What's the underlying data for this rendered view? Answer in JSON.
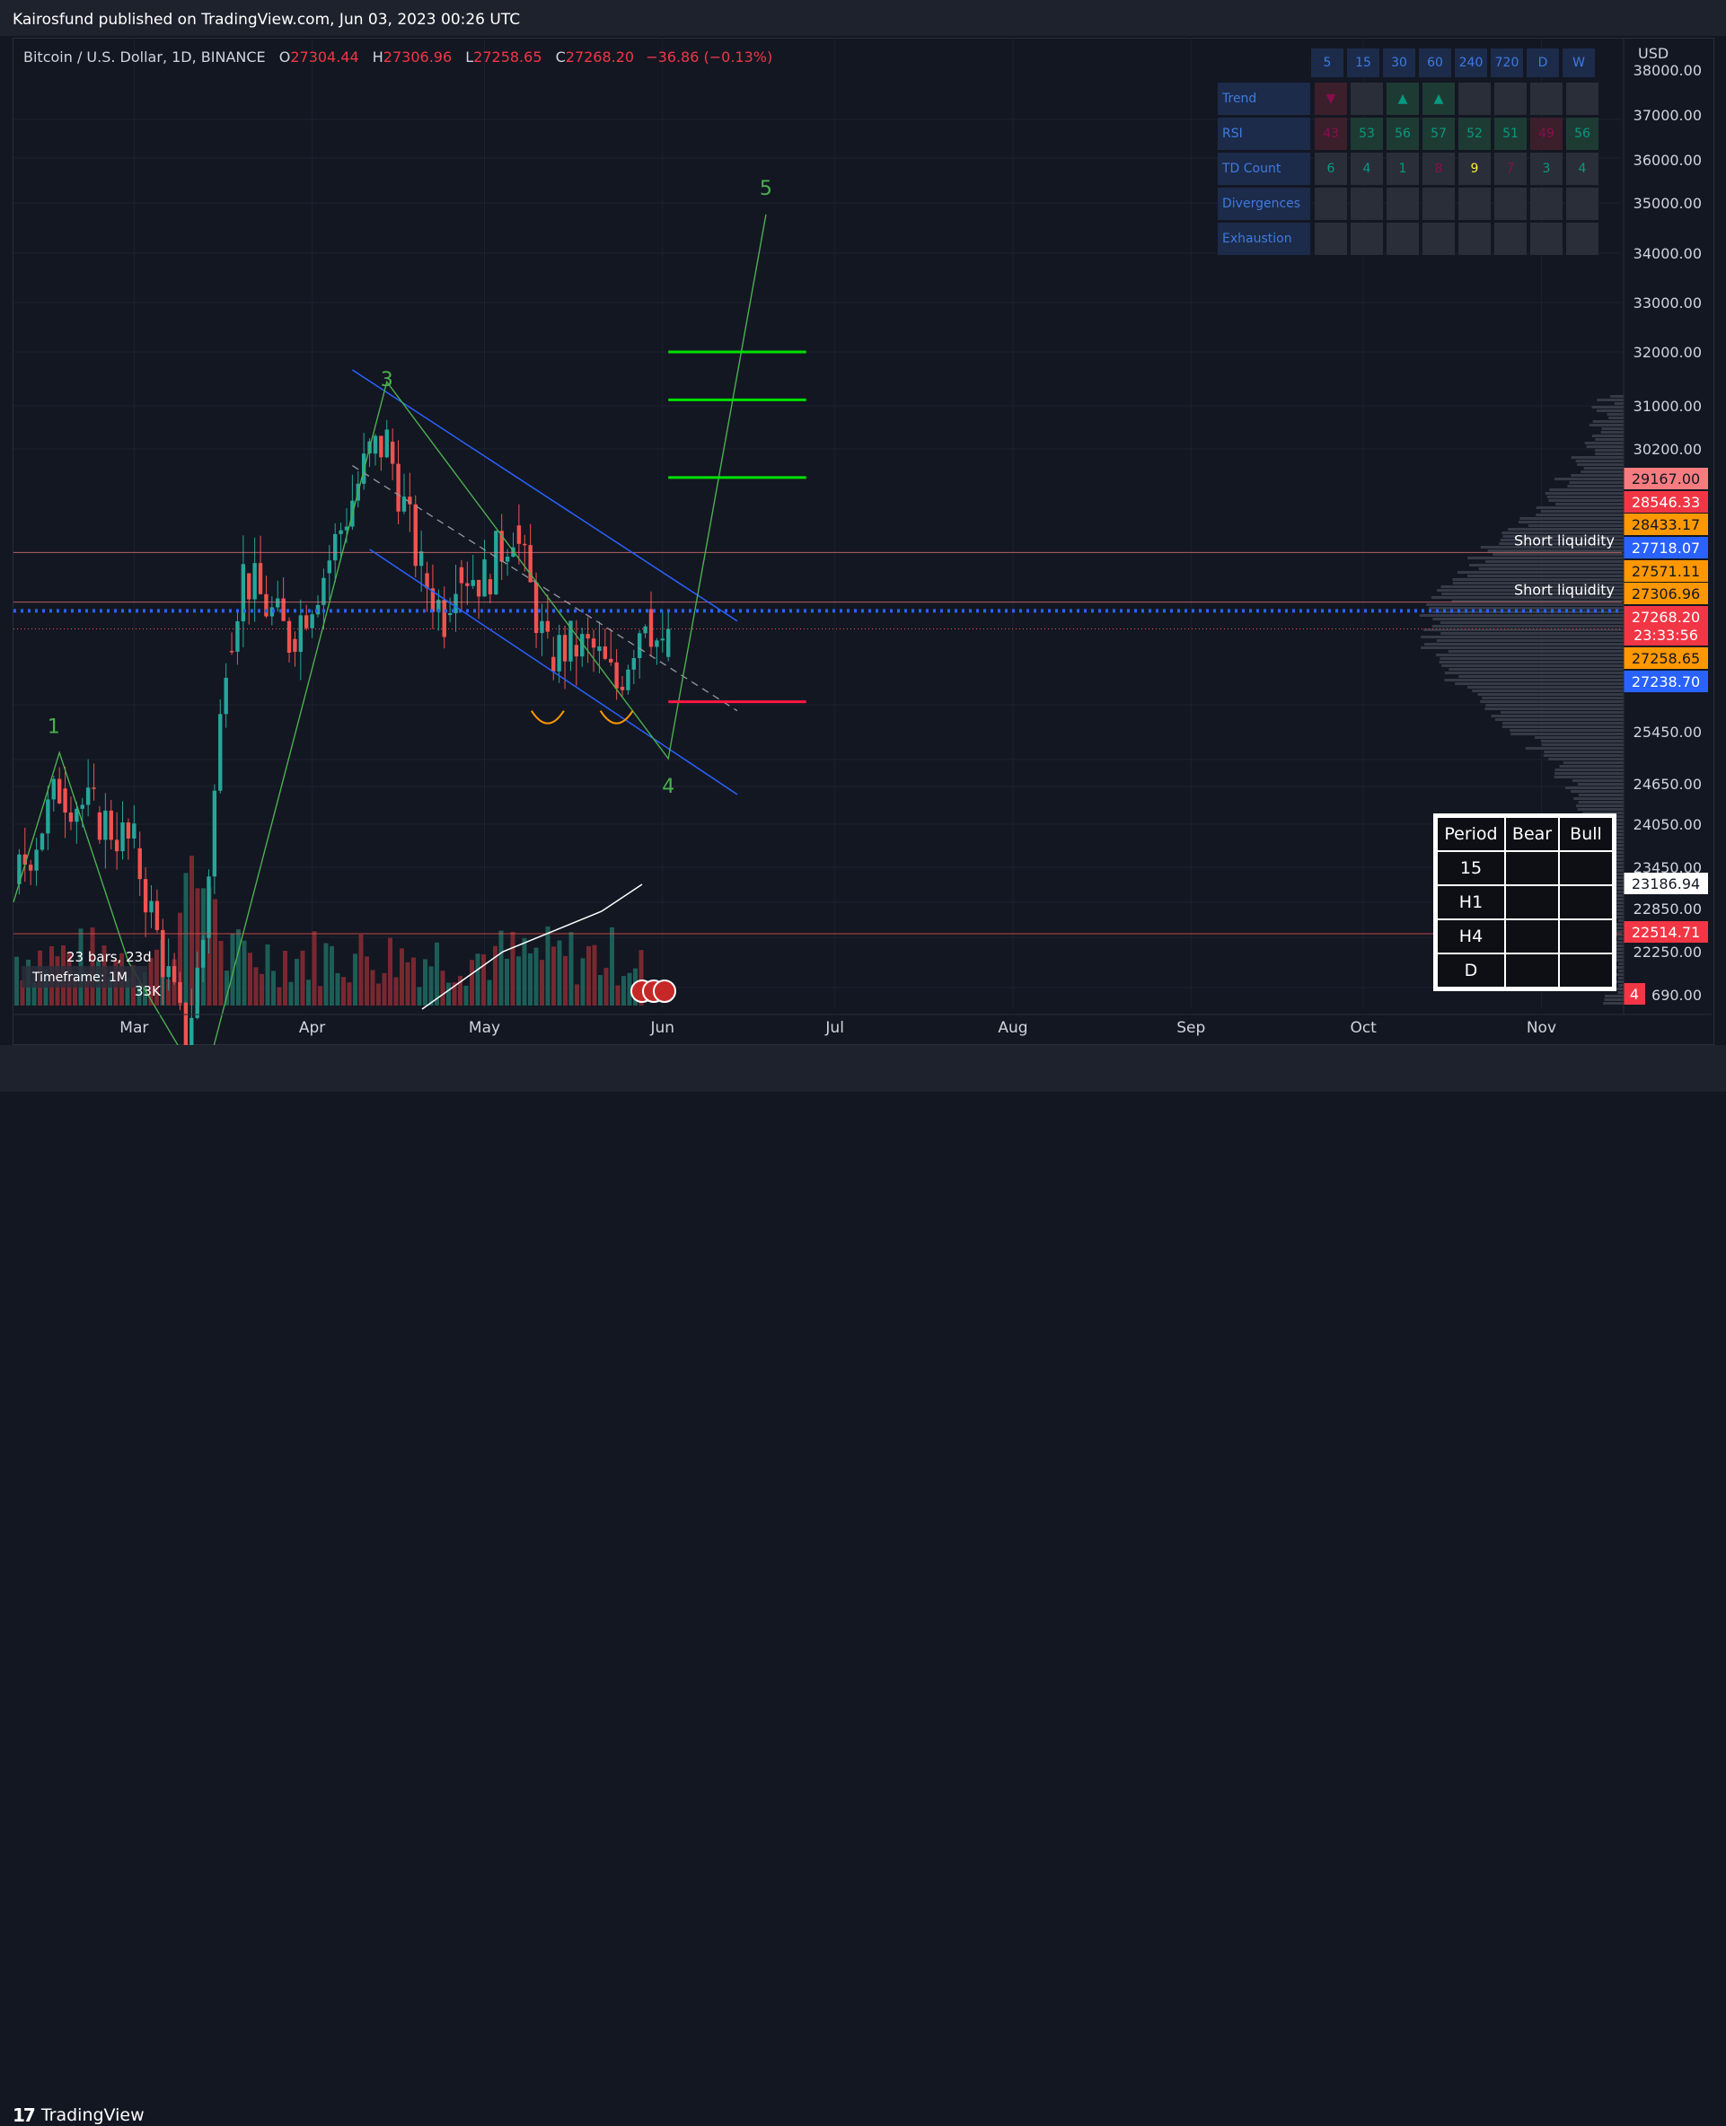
{
  "header": {
    "published_line": "Kairosfund published on TradingView.com, Jun 03, 2023 00:26 UTC"
  },
  "legend": {
    "symbol": "Bitcoin / U.S. Dollar, 1D, BINANCE",
    "open_label": "O",
    "open": "27304.44",
    "high_label": "H",
    "high": "27306.96",
    "low_label": "L",
    "low": "27258.65",
    "close_label": "C",
    "close": "27268.20",
    "change": "−36.86 (−0.13%)"
  },
  "price_axis": {
    "currency": "USD",
    "ticks": [
      "37000.00",
      "36000.00",
      "35000.00",
      "34000.00",
      "33000.00",
      "32000.00",
      "31000.00",
      "30200.00",
      "25450.00",
      "24650.00",
      "24050.00",
      "23450.00",
      "22850.00",
      "22250.00",
      "690.00"
    ],
    "top_cut_tick": "38000.00"
  },
  "price_badges": [
    {
      "text": "29167.00",
      "bg": "#f77c80",
      "fg": "#131722"
    },
    {
      "text": "28546.33",
      "bg": "#f23645",
      "fg": "#ffffff"
    },
    {
      "text": "28433.17",
      "bg": "#ff9800",
      "fg": "#131722"
    },
    {
      "text": "27718.07",
      "bg": "#2962ff",
      "fg": "#ffffff"
    },
    {
      "text": "27571.11",
      "bg": "#ff9800",
      "fg": "#131722"
    },
    {
      "text": "27306.96",
      "bg": "#ff9800",
      "fg": "#131722"
    },
    {
      "text": "27268.20",
      "bg": "#f23645",
      "fg": "#ffffff"
    },
    {
      "text": "23:33:56",
      "bg": "#f23645",
      "fg": "#ffffff"
    },
    {
      "text": "27258.65",
      "bg": "#ff9800",
      "fg": "#131722"
    },
    {
      "text": "27238.70",
      "bg": "#2962ff",
      "fg": "#ffffff"
    },
    {
      "text": "23186.94",
      "bg": "#ffffff",
      "fg": "#131722"
    },
    {
      "text": "22514.71",
      "bg": "#f23645",
      "fg": "#ffffff"
    },
    {
      "text": "4",
      "bg": "#f23645",
      "fg": "#ffffff"
    }
  ],
  "annotations": {
    "short_liquidity_1": "Short liquidity",
    "short_liquidity_2": "Short liquidity",
    "wave_1": "1",
    "wave_3": "3",
    "wave_4": "4",
    "wave_5": "5",
    "bars_info": "23 bars, 23d",
    "timeframe_info": "Timeframe: 1M",
    "volume_info": "33K"
  },
  "time_axis": {
    "labels": [
      "Mar",
      "Apr",
      "May",
      "Jun",
      "Jul",
      "Aug",
      "Sep",
      "Oct",
      "Nov"
    ]
  },
  "mtf_table": {
    "timeframes": [
      "5",
      "15",
      "30",
      "60",
      "240",
      "720",
      "D",
      "W"
    ],
    "rows": [
      {
        "label": "Trend",
        "cells": [
          "▼",
          "",
          "▲",
          "▲",
          "",
          "",
          "",
          ""
        ],
        "colors": [
          "#880e4f",
          "",
          "#089981",
          "#089981",
          "",
          "",
          "",
          ""
        ],
        "bgs": [
          "#3b1f2b",
          "#2a2e39",
          "#1e3b33",
          "#1e3b33",
          "#2a2e39",
          "#2a2e39",
          "#2a2e39",
          "#2a2e39"
        ]
      },
      {
        "label": "RSI",
        "cells": [
          "43",
          "53",
          "56",
          "57",
          "52",
          "51",
          "49",
          "56"
        ],
        "colors": [
          "#880e4f",
          "#089981",
          "#089981",
          "#089981",
          "#089981",
          "#089981",
          "#880e4f",
          "#089981"
        ],
        "bgs": [
          "#3b1f2b",
          "#1e3b33",
          "#1e3b33",
          "#1e3b33",
          "#1e3b33",
          "#1e3b33",
          "#3b1f2b",
          "#1e3b33"
        ]
      },
      {
        "label": "TD Count",
        "cells": [
          "6",
          "4",
          "1",
          "8",
          "9",
          "7",
          "3",
          "4"
        ],
        "colors": [
          "#089981",
          "#089981",
          "#089981",
          "#880e4f",
          "#ffeb3b",
          "#880e4f",
          "#089981",
          "#089981"
        ],
        "bgs": [
          "#2a2e39",
          "#2a2e39",
          "#2a2e39",
          "#2a2e39",
          "#2a2e39",
          "#2a2e39",
          "#2a2e39",
          "#2a2e39"
        ]
      },
      {
        "label": "Divergences",
        "cells": [
          "",
          "",
          "",
          "",
          "",
          "",
          "",
          ""
        ],
        "colors": [
          "",
          "",
          "",
          "",
          "",
          "",
          "",
          ""
        ],
        "bgs": [
          "#2a2e39",
          "#2a2e39",
          "#2a2e39",
          "#2a2e39",
          "#2a2e39",
          "#2a2e39",
          "#2a2e39",
          "#2a2e39"
        ]
      },
      {
        "label": "Exhaustion",
        "cells": [
          "",
          "",
          "",
          "",
          "",
          "",
          "",
          ""
        ],
        "colors": [
          "",
          "",
          "",
          "",
          "",
          "",
          "",
          ""
        ],
        "bgs": [
          "#2a2e39",
          "#2a2e39",
          "#2a2e39",
          "#2a2e39",
          "#2a2e39",
          "#2a2e39",
          "#2a2e39",
          "#2a2e39"
        ]
      }
    ]
  },
  "period_table": {
    "headers": [
      "Period",
      "Bear",
      "Bull"
    ],
    "rows": [
      "15",
      "H1",
      "H4",
      "D"
    ]
  },
  "footer": {
    "brand": "TradingView"
  },
  "colors": {
    "background": "#131722",
    "up": "#26a69a",
    "down": "#ef5350",
    "channel": "#2962ff",
    "wave": "#4caf50",
    "target": "#00e000",
    "stop": "#ff1744"
  },
  "chart_data": {
    "type": "line",
    "title": "Bitcoin / U.S. Dollar, 1D, BINANCE",
    "x_range": [
      "2023-02-08",
      "2023-11-15"
    ],
    "y_range": [
      21700,
      38000
    ],
    "close_path": [
      {
        "x": "2023-02-08",
        "y": 23000
      },
      {
        "x": "2023-02-16",
        "y": 24600
      },
      {
        "x": "2023-02-22",
        "y": 24200
      },
      {
        "x": "2023-03-01",
        "y": 23600
      },
      {
        "x": "2023-03-10",
        "y": 20300
      },
      {
        "x": "2023-03-13",
        "y": 22100
      },
      {
        "x": "2023-03-17",
        "y": 26900
      },
      {
        "x": "2023-03-20",
        "y": 28200
      },
      {
        "x": "2023-03-28",
        "y": 27100
      },
      {
        "x": "2023-04-03",
        "y": 28200
      },
      {
        "x": "2023-04-11",
        "y": 30200
      },
      {
        "x": "2023-04-14",
        "y": 30400
      },
      {
        "x": "2023-04-20",
        "y": 28200
      },
      {
        "x": "2023-04-24",
        "y": 27500
      },
      {
        "x": "2023-04-26",
        "y": 28300
      },
      {
        "x": "2023-05-01",
        "y": 28100
      },
      {
        "x": "2023-05-06",
        "y": 29000
      },
      {
        "x": "2023-05-12",
        "y": 26800
      },
      {
        "x": "2023-05-16",
        "y": 27000
      },
      {
        "x": "2023-05-20",
        "y": 26900
      },
      {
        "x": "2023-05-24",
        "y": 26300
      },
      {
        "x": "2023-05-29",
        "y": 27600
      },
      {
        "x": "2023-06-01",
        "y": 26800
      },
      {
        "x": "2023-06-02",
        "y": 27268
      }
    ],
    "elliott_waves": [
      {
        "label": "1",
        "x": "2023-02-15",
        "y": 25200
      },
      {
        "label": "3",
        "x": "2023-04-14",
        "y": 31000
      },
      {
        "label": "4",
        "x": "2023-06-02",
        "y": 25100
      },
      {
        "label": "5",
        "x": "2023-06-19",
        "y": 34200
      }
    ],
    "wave_path": [
      {
        "x": "2023-02-08",
        "y": 22700
      },
      {
        "x": "2023-02-16",
        "y": 25200
      },
      {
        "x": "2023-02-28",
        "y": 21700
      },
      {
        "x": "2023-03-13",
        "y": 19600
      },
      {
        "x": "2023-04-14",
        "y": 31400
      },
      {
        "x": "2023-06-02",
        "y": 25100
      },
      {
        "x": "2023-06-19",
        "y": 34200
      }
    ],
    "channel_upper": [
      {
        "x": "2023-04-08",
        "y": 31600
      },
      {
        "x": "2023-06-14",
        "y": 27400
      }
    ],
    "channel_lower": [
      {
        "x": "2023-04-11",
        "y": 28600
      },
      {
        "x": "2023-06-14",
        "y": 24500
      }
    ],
    "channel_mid": [
      {
        "x": "2023-04-08",
        "y": 30000
      },
      {
        "x": "2023-06-14",
        "y": 25900
      }
    ],
    "targets": [
      31900,
      31100,
      29800
    ],
    "stop": 26050,
    "short_liquidity_levels": [
      28546.33,
      27718.07
    ],
    "current_price": 27268.2,
    "dotted_level": 27571.11,
    "low_support_level": 22514.71
  }
}
